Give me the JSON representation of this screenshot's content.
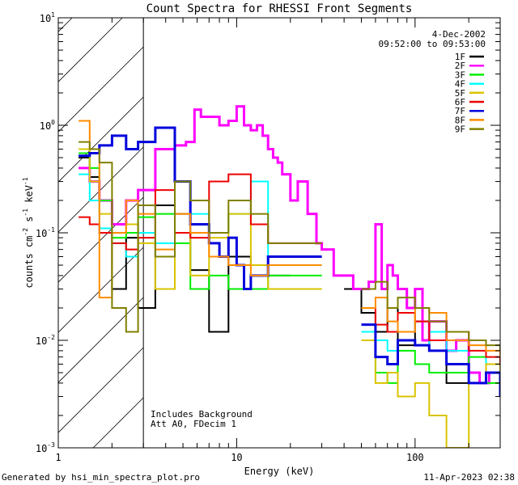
{
  "chart_data": {
    "type": "line",
    "title": "Count Spectra for RHESSI Front Segments",
    "xlabel": "Energy (keV)",
    "ylabel_parts": {
      "base": "counts cm",
      "exp1": "-2",
      "mid": " s",
      "exp2": "-1",
      "tail": " keV",
      "exp3": "-1"
    },
    "x_scale": "log",
    "y_scale": "log",
    "xlim": [
      1,
      300
    ],
    "ylim": [
      0.001,
      10
    ],
    "x_ticks": [
      {
        "value": 1,
        "label": "1"
      },
      {
        "value": 10,
        "label": "10"
      },
      {
        "value": 100,
        "label": "100"
      }
    ],
    "y_ticks": [
      {
        "value": 0.001,
        "base": "10",
        "exp": "-3"
      },
      {
        "value": 0.01,
        "base": "10",
        "exp": "-2"
      },
      {
        "value": 0.1,
        "base": "10",
        "exp": "-1"
      },
      {
        "value": 1,
        "base": "10",
        "exp": "0"
      },
      {
        "value": 10,
        "base": "10",
        "exp": "1"
      }
    ],
    "shaded_region": {
      "x_from": 1,
      "x_to": 3,
      "style": "diagonal hatch"
    },
    "date": "4-Dec-2002",
    "time_range": "09:52:00 to 09:53:00",
    "annotations": [
      "Includes Background",
      "Att A0, FDecim 1"
    ],
    "legend_position": "top-right",
    "series": [
      {
        "name": "1F",
        "color": "#000000",
        "width": 2,
        "x": [
          1.3,
          1.5,
          1.7,
          2.0,
          2.4,
          2.8,
          3.5,
          4.5,
          5.5,
          7,
          9,
          12,
          15,
          20,
          25,
          30,
          40,
          50,
          60,
          70,
          80,
          100,
          120,
          150,
          200,
          250,
          300
        ],
        "y": [
          0.5,
          0.33,
          0.2,
          0.03,
          0.09,
          0.02,
          0.18,
          0.15,
          0.045,
          0.012,
          0.06,
          0.05,
          0.04,
          null,
          null,
          null,
          0.03,
          0.018,
          0.012,
          0.02,
          0.009,
          0.015,
          0.008,
          0.004,
          0.01,
          0.006,
          0.003
        ]
      },
      {
        "name": "2F",
        "color": "#ff00ff",
        "width": 3,
        "x": [
          1.3,
          1.5,
          1.7,
          2.0,
          2.4,
          2.8,
          3.5,
          4.5,
          5.2,
          5.8,
          6.3,
          7,
          8,
          9,
          10,
          11,
          12,
          13,
          14,
          15,
          16,
          17,
          18,
          20,
          22,
          25,
          28,
          30,
          35,
          40,
          45,
          50,
          55,
          60,
          65,
          70,
          75,
          80,
          90,
          100,
          110,
          120,
          130,
          150,
          170,
          200,
          230,
          260,
          300
        ],
        "y": [
          0.4,
          0.3,
          0.2,
          0.12,
          0.2,
          0.25,
          0.6,
          0.65,
          0.7,
          1.4,
          1.2,
          1.2,
          1.0,
          1.1,
          1.5,
          1.0,
          0.9,
          1.0,
          0.8,
          0.6,
          0.5,
          0.45,
          0.35,
          0.2,
          0.3,
          0.15,
          0.08,
          0.07,
          0.04,
          0.04,
          0.03,
          0.03,
          0.035,
          0.12,
          0.03,
          0.05,
          0.04,
          0.03,
          0.02,
          0.03,
          0.01,
          0.015,
          0.015,
          0.008,
          0.01,
          0.005,
          0.004,
          0.005,
          0.003
        ]
      },
      {
        "name": "3F",
        "color": "#00ee00",
        "width": 2,
        "x": [
          1.3,
          1.5,
          1.7,
          2.0,
          2.4,
          2.8,
          3.5,
          4.5,
          5.5,
          7,
          9,
          12,
          15,
          30,
          50,
          60,
          70,
          80,
          100,
          120,
          150,
          200,
          250,
          300
        ],
        "y": [
          0.55,
          0.4,
          0.2,
          0.09,
          0.1,
          0.14,
          0.15,
          0.08,
          0.03,
          0.04,
          0.03,
          0.03,
          0.04,
          null,
          0.01,
          0.005,
          0.004,
          0.008,
          0.006,
          0.005,
          0.005,
          0.007,
          0.004,
          0.005
        ]
      },
      {
        "name": "4F",
        "color": "#00ffff",
        "width": 2,
        "x": [
          1.3,
          1.5,
          1.7,
          2.0,
          2.4,
          2.8,
          3.5,
          4.5,
          5.5,
          7,
          9,
          12,
          15,
          30,
          50,
          60,
          70,
          80,
          100,
          120,
          150,
          200,
          250,
          300
        ],
        "y": [
          0.35,
          0.2,
          0.11,
          0.08,
          0.06,
          0.1,
          0.08,
          0.3,
          0.15,
          0.1,
          0.15,
          0.3,
          0.05,
          null,
          0.012,
          0.01,
          0.008,
          0.01,
          0.009,
          0.012,
          0.008,
          0.01,
          0.006,
          0.004
        ]
      },
      {
        "name": "5F",
        "color": "#d9c400",
        "width": 2,
        "x": [
          1.3,
          1.5,
          1.7,
          2.0,
          2.4,
          2.8,
          3.5,
          4.5,
          5.5,
          7,
          9,
          12,
          15,
          30,
          50,
          60,
          70,
          80,
          100,
          120,
          150,
          200,
          250,
          300
        ],
        "y": [
          0.6,
          0.3,
          0.15,
          0.1,
          0.12,
          0.08,
          0.03,
          0.1,
          0.04,
          0.09,
          0.15,
          0.05,
          0.03,
          null,
          0.01,
          0.004,
          0.005,
          0.003,
          0.004,
          0.002,
          0.001,
          0.004,
          0.006,
          0.005
        ]
      },
      {
        "name": "6F",
        "color": "#ee0000",
        "width": 2,
        "x": [
          1.3,
          1.5,
          1.7,
          2.0,
          2.4,
          2.8,
          3.5,
          4.5,
          5.5,
          7,
          9,
          12,
          15,
          30,
          50,
          60,
          70,
          80,
          100,
          120,
          150,
          200,
          250,
          300
        ],
        "y": [
          0.14,
          0.12,
          0.1,
          0.08,
          0.07,
          0.09,
          0.25,
          0.1,
          0.09,
          0.3,
          0.35,
          0.12,
          0.08,
          null,
          0.02,
          0.014,
          0.012,
          0.018,
          0.015,
          0.01,
          0.012,
          0.008,
          0.007,
          0.006
        ]
      },
      {
        "name": "7F",
        "color": "#0000dd",
        "width": 3,
        "x": [
          1.3,
          1.5,
          1.7,
          2.0,
          2.4,
          2.8,
          3.5,
          4.5,
          5.5,
          7,
          8,
          9,
          10,
          11,
          12,
          15,
          30,
          50,
          60,
          70,
          80,
          100,
          120,
          150,
          200,
          250,
          300
        ],
        "y": [
          0.52,
          0.55,
          0.65,
          0.8,
          0.6,
          0.7,
          0.95,
          0.3,
          0.12,
          0.08,
          0.06,
          0.09,
          0.05,
          0.03,
          0.04,
          0.06,
          null,
          0.014,
          0.007,
          0.006,
          0.01,
          0.009,
          0.008,
          0.006,
          0.004,
          0.005,
          0.003
        ]
      },
      {
        "name": "8F",
        "color": "#ff8c00",
        "width": 2,
        "x": [
          1.3,
          1.5,
          1.7,
          2.0,
          2.4,
          2.8,
          3.5,
          4.5,
          5.5,
          7,
          9,
          12,
          15,
          30,
          50,
          60,
          70,
          80,
          100,
          120,
          150,
          200,
          250,
          300
        ],
        "y": [
          1.1,
          0.6,
          0.025,
          0.1,
          0.2,
          0.15,
          0.07,
          0.15,
          0.1,
          0.06,
          0.05,
          0.04,
          0.05,
          null,
          0.02,
          0.025,
          0.015,
          0.012,
          0.02,
          0.018,
          0.01,
          0.009,
          0.008,
          0.007
        ]
      },
      {
        "name": "9F",
        "color": "#808000",
        "width": 2,
        "x": [
          1.3,
          1.5,
          1.7,
          2.0,
          2.4,
          2.8,
          3.5,
          4.5,
          5.5,
          7,
          9,
          12,
          15,
          30,
          50,
          60,
          70,
          80,
          100,
          120,
          150,
          200,
          250,
          300
        ],
        "y": [
          0.7,
          0.6,
          0.45,
          0.02,
          0.012,
          0.18,
          0.06,
          0.3,
          0.2,
          0.1,
          0.2,
          0.15,
          0.08,
          null,
          0.03,
          0.035,
          0.02,
          0.025,
          0.02,
          0.015,
          0.012,
          0.01,
          0.009,
          0.008
        ]
      }
    ]
  },
  "footer": {
    "generated_by": "Generated by hsi_min_spectra_plot.pro",
    "timestamp": "11-Apr-2023 02:38"
  }
}
